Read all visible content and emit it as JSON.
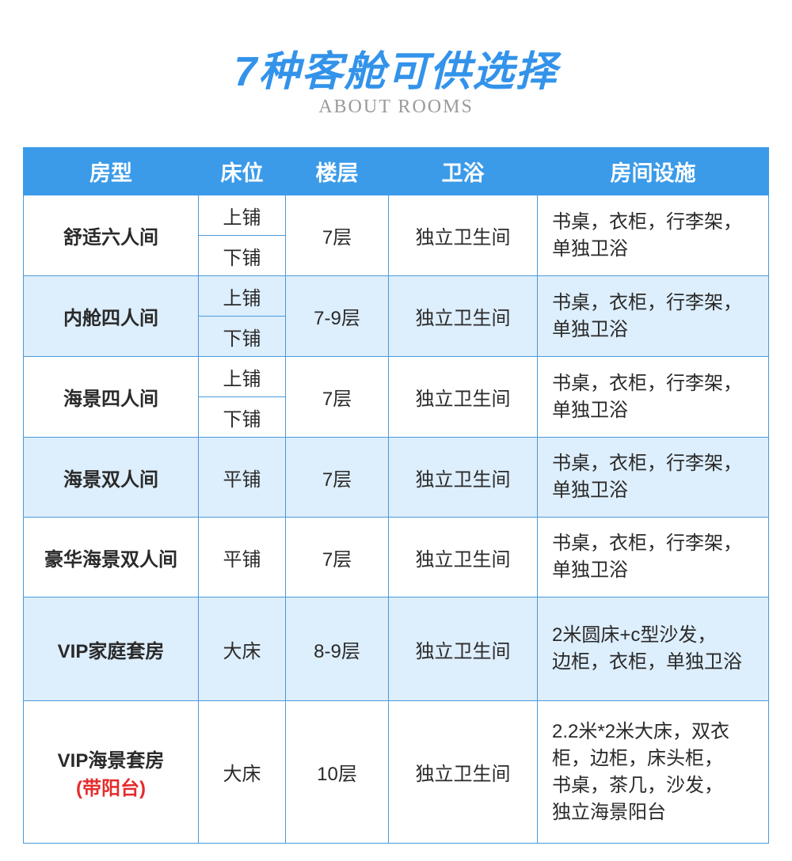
{
  "title": "7种客舱可供选择",
  "subtitle": "ABOUT ROOMS",
  "colors": {
    "accent": "#3393ea",
    "header_bg": "#3b9be9",
    "alt_row": "#ddeefc",
    "highlight": "#e52b2b"
  },
  "columns": [
    "房型",
    "床位",
    "楼层",
    "卫浴",
    "房间设施"
  ],
  "rows": [
    {
      "name": "舒适六人间",
      "beds": [
        "上铺",
        "下铺"
      ],
      "floor": "7层",
      "bath": "独立卫生间",
      "facilities": [
        "书桌，衣柜，行李架，",
        "单独卫浴"
      ]
    },
    {
      "name": "内舱四人间",
      "beds": [
        "上铺",
        "下铺"
      ],
      "floor": "7-9层",
      "bath": "独立卫生间",
      "facilities": [
        "书桌，衣柜，行李架，",
        "单独卫浴"
      ]
    },
    {
      "name": "海景四人间",
      "beds": [
        "上铺",
        "下铺"
      ],
      "floor": "7层",
      "bath": "独立卫生间",
      "facilities": [
        "书桌，衣柜，行李架，",
        "单独卫浴"
      ]
    },
    {
      "name": "海景双人间",
      "beds": [
        "平铺"
      ],
      "floor": "7层",
      "bath": "独立卫生间",
      "facilities": [
        "书桌，衣柜，行李架，",
        "单独卫浴"
      ]
    },
    {
      "name": "豪华海景双人间",
      "beds": [
        "平铺"
      ],
      "floor": "7层",
      "bath": "独立卫生间",
      "facilities": [
        "书桌，衣柜，行李架，",
        "单独卫浴"
      ]
    },
    {
      "name": "VIP家庭套房",
      "beds": [
        "大床"
      ],
      "floor": "8-9层",
      "bath": "独立卫生间",
      "facilities": [
        "2米圆床+c型沙发，",
        "边柜，衣柜，单独卫浴"
      ]
    },
    {
      "name": "VIP海景套房",
      "note": "(带阳台)",
      "beds": [
        "大床"
      ],
      "floor": "10层",
      "bath": "独立卫生间",
      "facilities": [
        "2.2米*2米大床，双衣",
        "柜，边柜，床头柜，",
        "书桌，茶几，沙发，",
        "独立海景阳台"
      ]
    }
  ]
}
